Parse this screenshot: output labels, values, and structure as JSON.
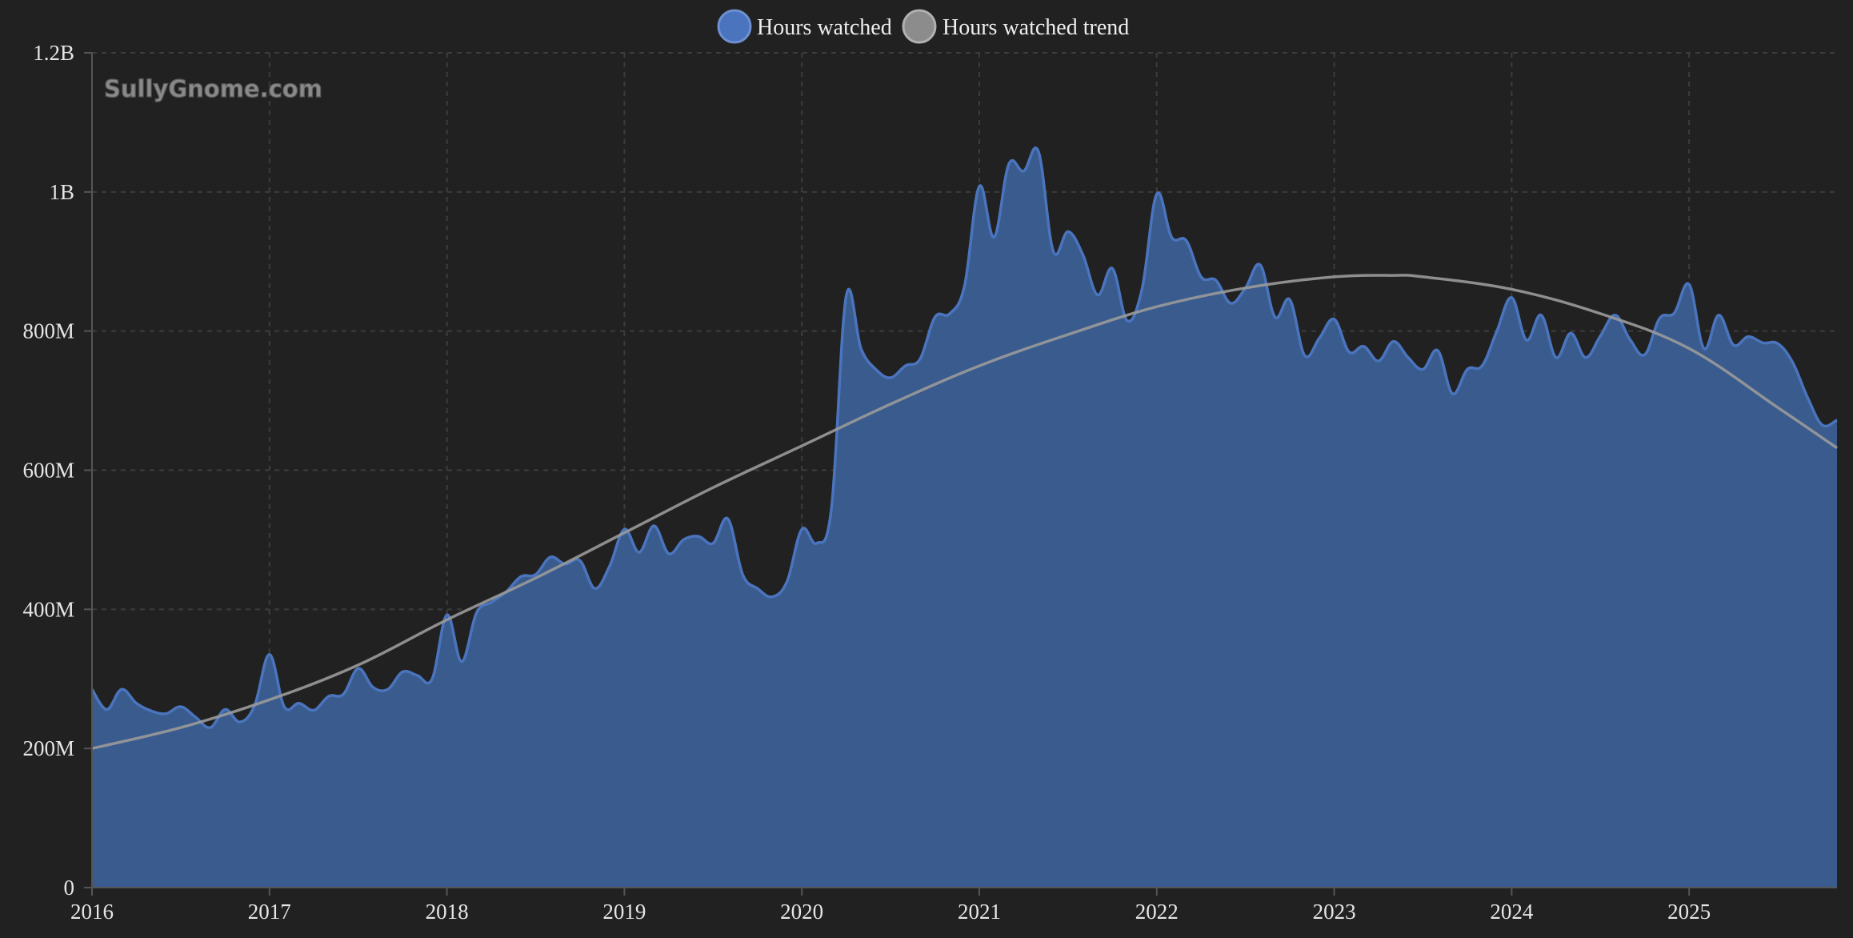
{
  "watermark": "SullyGnome.com",
  "colors": {
    "background": "#212121",
    "series_line": "#4a74bd",
    "series_fill": "#3a5d91",
    "trend_line": "#9a9a9a",
    "grid": "#3d3d3d",
    "axis": "#555555",
    "text": "#e6e6e6"
  },
  "chart_data": {
    "type": "area",
    "title": "",
    "xlabel": "",
    "ylabel": "",
    "xlim": [
      "2016-01-01",
      "2025-11-01"
    ],
    "ylim": [
      0,
      1200000000
    ],
    "y_ticks": [
      0,
      200000000,
      400000000,
      600000000,
      800000000,
      1000000000,
      1200000000
    ],
    "y_tick_labels": [
      "0",
      "200M",
      "400M",
      "600M",
      "800M",
      "1B",
      "1.2B"
    ],
    "x_tick_labels": [
      "2016",
      "2017",
      "2018",
      "2019",
      "2020",
      "2021",
      "2022",
      "2023",
      "2024",
      "2025"
    ],
    "grid": true,
    "legend_position": "top-center",
    "series": [
      {
        "name": "Hours watched",
        "color": "#4a74bd",
        "kind": "area",
        "points": [
          [
            "2016-01",
            285000000
          ],
          [
            "2016-02",
            256000000
          ],
          [
            "2016-03",
            285000000
          ],
          [
            "2016-04",
            265000000
          ],
          [
            "2016-05",
            254000000
          ],
          [
            "2016-06",
            250000000
          ],
          [
            "2016-07",
            260000000
          ],
          [
            "2016-08",
            245000000
          ],
          [
            "2016-09",
            230000000
          ],
          [
            "2016-10",
            256000000
          ],
          [
            "2016-11",
            238000000
          ],
          [
            "2016-12",
            262000000
          ],
          [
            "2017-01",
            335000000
          ],
          [
            "2017-02",
            260000000
          ],
          [
            "2017-03",
            265000000
          ],
          [
            "2017-04",
            255000000
          ],
          [
            "2017-05",
            275000000
          ],
          [
            "2017-06",
            278000000
          ],
          [
            "2017-07",
            315000000
          ],
          [
            "2017-08",
            288000000
          ],
          [
            "2017-09",
            285000000
          ],
          [
            "2017-10",
            310000000
          ],
          [
            "2017-11",
            305000000
          ],
          [
            "2017-12",
            300000000
          ],
          [
            "2018-01",
            392000000
          ],
          [
            "2018-02",
            325000000
          ],
          [
            "2018-03",
            395000000
          ],
          [
            "2018-04",
            410000000
          ],
          [
            "2018-05",
            425000000
          ],
          [
            "2018-06",
            447000000
          ],
          [
            "2018-07",
            450000000
          ],
          [
            "2018-08",
            475000000
          ],
          [
            "2018-09",
            465000000
          ],
          [
            "2018-10",
            470000000
          ],
          [
            "2018-11",
            430000000
          ],
          [
            "2018-12",
            462000000
          ],
          [
            "2019-01",
            515000000
          ],
          [
            "2019-02",
            482000000
          ],
          [
            "2019-03",
            520000000
          ],
          [
            "2019-04",
            480000000
          ],
          [
            "2019-05",
            500000000
          ],
          [
            "2019-06",
            505000000
          ],
          [
            "2019-07",
            495000000
          ],
          [
            "2019-08",
            530000000
          ],
          [
            "2019-09",
            450000000
          ],
          [
            "2019-10",
            430000000
          ],
          [
            "2019-11",
            418000000
          ],
          [
            "2019-12",
            440000000
          ],
          [
            "2020-01",
            515000000
          ],
          [
            "2020-02",
            495000000
          ],
          [
            "2020-03",
            545000000
          ],
          [
            "2020-04",
            850000000
          ],
          [
            "2020-05",
            775000000
          ],
          [
            "2020-06",
            745000000
          ],
          [
            "2020-07",
            733000000
          ],
          [
            "2020-08",
            750000000
          ],
          [
            "2020-09",
            760000000
          ],
          [
            "2020-10",
            820000000
          ],
          [
            "2020-11",
            825000000
          ],
          [
            "2020-12",
            865000000
          ],
          [
            "2021-01",
            1008000000
          ],
          [
            "2021-02",
            935000000
          ],
          [
            "2021-03",
            1040000000
          ],
          [
            "2021-04",
            1030000000
          ],
          [
            "2021-05",
            1058000000
          ],
          [
            "2021-06",
            915000000
          ],
          [
            "2021-07",
            943000000
          ],
          [
            "2021-08",
            910000000
          ],
          [
            "2021-09",
            852000000
          ],
          [
            "2021-10",
            890000000
          ],
          [
            "2021-11",
            815000000
          ],
          [
            "2021-12",
            860000000
          ],
          [
            "2022-01",
            997000000
          ],
          [
            "2022-02",
            935000000
          ],
          [
            "2022-03",
            930000000
          ],
          [
            "2022-04",
            878000000
          ],
          [
            "2022-05",
            873000000
          ],
          [
            "2022-06",
            840000000
          ],
          [
            "2022-07",
            862000000
          ],
          [
            "2022-08",
            895000000
          ],
          [
            "2022-09",
            820000000
          ],
          [
            "2022-10",
            845000000
          ],
          [
            "2022-11",
            765000000
          ],
          [
            "2022-12",
            790000000
          ],
          [
            "2023-01",
            817000000
          ],
          [
            "2023-02",
            770000000
          ],
          [
            "2023-03",
            778000000
          ],
          [
            "2023-04",
            757000000
          ],
          [
            "2023-05",
            785000000
          ],
          [
            "2023-06",
            762000000
          ],
          [
            "2023-07",
            745000000
          ],
          [
            "2023-08",
            772000000
          ],
          [
            "2023-09",
            710000000
          ],
          [
            "2023-10",
            745000000
          ],
          [
            "2023-11",
            750000000
          ],
          [
            "2023-12",
            800000000
          ],
          [
            "2024-01",
            848000000
          ],
          [
            "2024-02",
            787000000
          ],
          [
            "2024-03",
            823000000
          ],
          [
            "2024-04",
            762000000
          ],
          [
            "2024-05",
            797000000
          ],
          [
            "2024-06",
            762000000
          ],
          [
            "2024-07",
            793000000
          ],
          [
            "2024-08",
            823000000
          ],
          [
            "2024-09",
            788000000
          ],
          [
            "2024-10",
            766000000
          ],
          [
            "2024-11",
            818000000
          ],
          [
            "2024-12",
            826000000
          ],
          [
            "2025-01",
            867000000
          ],
          [
            "2025-02",
            775000000
          ],
          [
            "2025-03",
            823000000
          ],
          [
            "2025-04",
            780000000
          ],
          [
            "2025-05",
            792000000
          ],
          [
            "2025-06",
            783000000
          ],
          [
            "2025-07",
            782000000
          ],
          [
            "2025-08",
            755000000
          ],
          [
            "2025-09",
            705000000
          ],
          [
            "2025-10",
            665000000
          ],
          [
            "2025-11",
            672000000
          ]
        ]
      },
      {
        "name": "Hours watched trend",
        "color": "#9a9a9a",
        "kind": "line",
        "points": [
          [
            "2016-01",
            200000000
          ],
          [
            "2016-07",
            230000000
          ],
          [
            "2017-01",
            270000000
          ],
          [
            "2017-07",
            320000000
          ],
          [
            "2018-01",
            385000000
          ],
          [
            "2018-07",
            445000000
          ],
          [
            "2019-01",
            510000000
          ],
          [
            "2019-07",
            575000000
          ],
          [
            "2020-01",
            635000000
          ],
          [
            "2020-07",
            695000000
          ],
          [
            "2021-01",
            750000000
          ],
          [
            "2021-07",
            795000000
          ],
          [
            "2022-01",
            835000000
          ],
          [
            "2022-07",
            862000000
          ],
          [
            "2023-01",
            878000000
          ],
          [
            "2023-05",
            880000000
          ],
          [
            "2023-07",
            878000000
          ],
          [
            "2024-01",
            860000000
          ],
          [
            "2024-07",
            825000000
          ],
          [
            "2025-01",
            775000000
          ],
          [
            "2025-07",
            690000000
          ],
          [
            "2025-11",
            632000000
          ]
        ]
      }
    ]
  }
}
